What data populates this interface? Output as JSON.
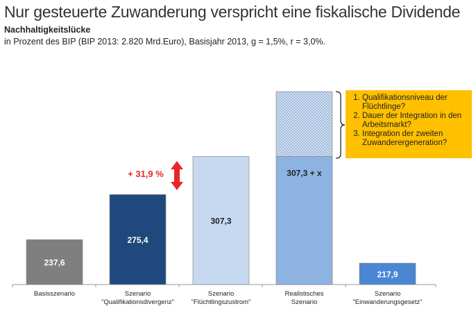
{
  "header": {
    "title": "Nur gesteuerte Zuwanderung verspricht eine fiskalische Dividende",
    "subtitle": "Nachhaltigkeitslücke",
    "note": "in Prozent des BIP (BIP 2013: 2.820 Mrd.Euro), Basisjahr 2013, g = 1,5%, r = 3,0%."
  },
  "chart_data": {
    "type": "bar",
    "title": "Nachhaltigkeitslücke",
    "categories": [
      [
        "Basisszenario"
      ],
      [
        "Szenario",
        "\"Qualifikationsdivergenz\""
      ],
      [
        "Szenario",
        "\"Flüchtlingszustrom\""
      ],
      [
        "Realistisches",
        "Szenario"
      ],
      [
        "Szenario",
        "\"Einwanderungsgesetz\""
      ]
    ],
    "values": [
      237.6,
      275.4,
      307.3,
      307.3,
      217.9
    ],
    "labels": [
      "237,6",
      "275,4",
      "307,3",
      "307,3 + x",
      "217,9"
    ],
    "colors": [
      "#7f7f7f",
      "#1f497d",
      "#c6d9f1",
      "#8db3e2",
      "#4a86d4"
    ],
    "label_colors": [
      "#ffffff",
      "#ffffff",
      "#222222",
      "#222222",
      "#ffffff"
    ],
    "uncertain_extension_on": 3,
    "ylim": [
      200,
      330
    ],
    "annotation": {
      "text": "+ 31,9 %",
      "color": "#e8262a"
    }
  },
  "callout": {
    "items": [
      "Qualifikationsniveau der Flüchtlinge?",
      "Dauer der Integration in den Arbeitsmarkt?",
      "Integration der zweiten Zuwanderergeneration?"
    ],
    "color": "#ffc000"
  }
}
